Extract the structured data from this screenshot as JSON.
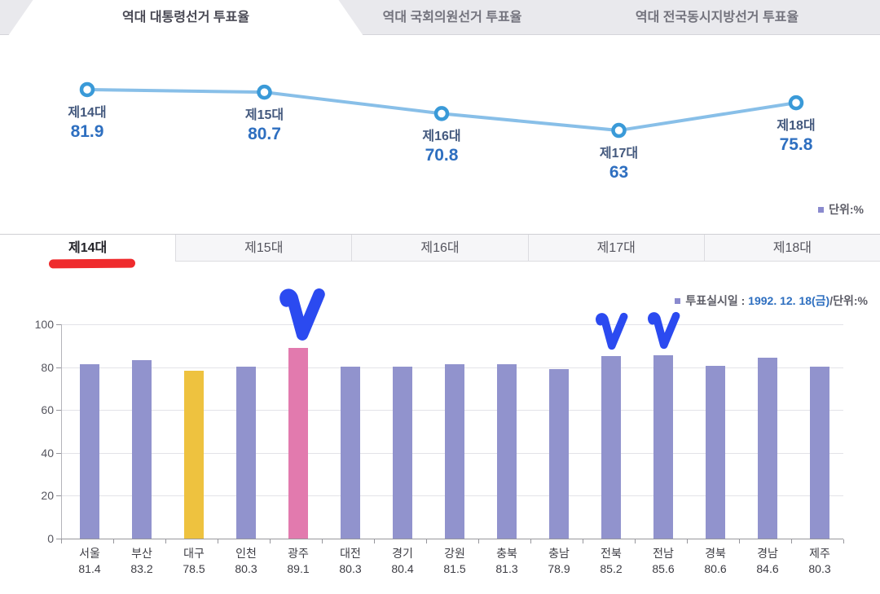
{
  "header": {
    "tabs": [
      {
        "label": "역대 대통령선거 투표율",
        "active": true
      },
      {
        "label": "역대 국회의원선거 투표율",
        "active": false
      },
      {
        "label": "역대 전국동시지방선거 투표율",
        "active": false
      }
    ]
  },
  "unit_label": "단위:%",
  "election_tabs": {
    "active": "제14대",
    "items": [
      {
        "label": "제14대"
      },
      {
        "label": "제15대"
      },
      {
        "label": "제16대"
      },
      {
        "label": "제17대"
      },
      {
        "label": "제18대"
      }
    ]
  },
  "bar_legend": {
    "prefix": "투표실시일 : ",
    "date": "1992. 12. 18(금)",
    "suffix": "/단위:%"
  },
  "chart_data": [
    {
      "type": "line",
      "title": "역대 대통령선거 투표율",
      "categories": [
        "제14대",
        "제15대",
        "제16대",
        "제17대",
        "제18대"
      ],
      "values": [
        81.9,
        80.7,
        70.8,
        63,
        75.8
      ],
      "unit": "%",
      "axes_visible": false,
      "grid": false,
      "point_labels_visible": true
    },
    {
      "type": "bar",
      "title": "제14대",
      "categories": [
        "서울",
        "부산",
        "대구",
        "인천",
        "광주",
        "대전",
        "경기",
        "강원",
        "충북",
        "충남",
        "전북",
        "전남",
        "경북",
        "경남",
        "제주"
      ],
      "values": [
        81.4,
        83.2,
        78.5,
        80.3,
        89.1,
        80.3,
        80.4,
        81.5,
        81.3,
        78.9,
        85.2,
        85.6,
        80.6,
        84.6,
        80.3
      ],
      "unit": "%",
      "ylim": [
        0,
        100
      ],
      "yticks": [
        0,
        20,
        40,
        60,
        80,
        100
      ],
      "grid": true,
      "bar_color_default": "#9193cd",
      "bar_color_overrides": {
        "대구": "#eec23f",
        "광주": "#e27aae"
      }
    }
  ],
  "annotations": {
    "red_underline_under_tab": "제14대",
    "checkmarks_over_bars": [
      "광주",
      "전북",
      "전남"
    ]
  },
  "colors": {
    "checkmark_blue": "#2b4af0",
    "underline_red": "#ef2b2d",
    "line_stroke": "#88bfe8",
    "marker_ring": "#3a9ad8",
    "value_text_blue": "#2e6fc0",
    "legend_bullet_purple": "#8a8ace",
    "bar_default_purple": "#9193cd",
    "bar_yellow": "#eec23f",
    "bar_pink": "#e27aae",
    "header_band_gray": "#e9e9ed"
  }
}
